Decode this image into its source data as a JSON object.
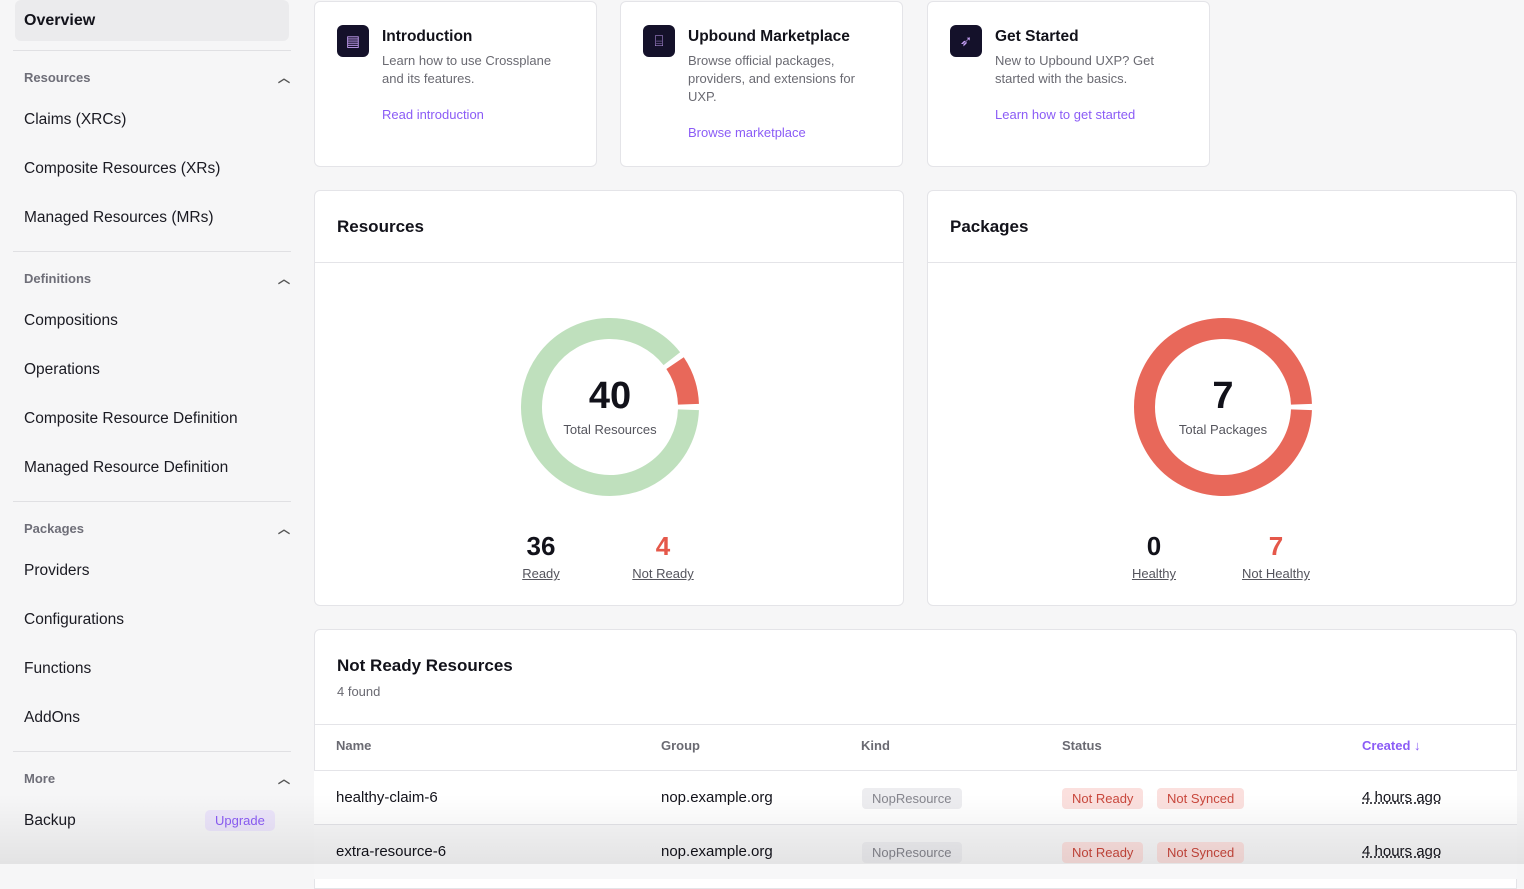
{
  "sidebar": {
    "overview": "Overview",
    "sections": [
      {
        "title": "Resources",
        "items": [
          "Claims (XRCs)",
          "Composite Resources (XRs)",
          "Managed Resources (MRs)"
        ]
      },
      {
        "title": "Definitions",
        "items": [
          "Compositions",
          "Operations",
          "Composite Resource Definition",
          "Managed Resource Definition"
        ]
      },
      {
        "title": "Packages",
        "items": [
          "Providers",
          "Configurations",
          "Functions",
          "AddOns"
        ]
      },
      {
        "title": "More",
        "items": [
          "Backup"
        ]
      }
    ],
    "upgrade": "Upgrade"
  },
  "quick_cards": [
    {
      "title": "Introduction",
      "desc": "Learn how to use Crossplane and its features.",
      "link": "Read introduction",
      "icon": "book-icon"
    },
    {
      "title": "Upbound Marketplace",
      "desc": "Browse official packages, providers, and extensions for UXP.",
      "link": "Browse marketplace",
      "icon": "store-icon"
    },
    {
      "title": "Get Started",
      "desc": "New to Upbound UXP? Get started with the basics.",
      "link": "Learn how to get started",
      "icon": "rocket-icon"
    }
  ],
  "resources": {
    "title": "Resources",
    "total": "40",
    "total_label": "Total Resources",
    "ready": "36",
    "ready_label": "Ready",
    "not_ready": "4",
    "not_ready_label": "Not Ready"
  },
  "packages": {
    "title": "Packages",
    "total": "7",
    "total_label": "Total Packages",
    "healthy": "0",
    "healthy_label": "Healthy",
    "not_healthy": "7",
    "not_healthy_label": "Not Healthy"
  },
  "colors": {
    "ok": "#bfe0bd",
    "bad": "#e8685a",
    "accent": "#8b5cf6"
  },
  "not_ready": {
    "title": "Not Ready Resources",
    "count": "4 found",
    "columns": [
      "Name",
      "Group",
      "Kind",
      "Status",
      "Created"
    ],
    "sort_icon": "arrow-down-icon",
    "rows": [
      {
        "name": "healthy-claim-6",
        "group": "nop.example.org",
        "kind": "NopResource",
        "status": [
          "Not Ready",
          "Not Synced"
        ],
        "created": "4 hours ago"
      },
      {
        "name": "extra-resource-6",
        "group": "nop.example.org",
        "kind": "NopResource",
        "status": [
          "Not Ready",
          "Not Synced"
        ],
        "created": "4 hours ago"
      }
    ]
  }
}
